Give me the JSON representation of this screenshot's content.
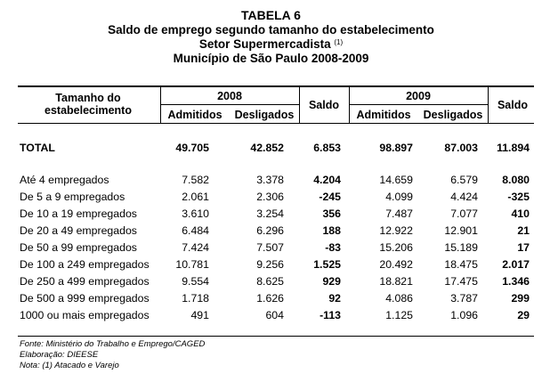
{
  "title": {
    "line1": "TABELA 6",
    "line2": "Saldo de emprego segundo tamanho do estabelecimento",
    "line3": "Setor Supermercadista",
    "line3_sup": "(1)",
    "line4": "Município de São Paulo 2008-2009"
  },
  "header": {
    "col_label_line1": "Tamanho do",
    "col_label_line2": "estabelecimento",
    "year1": "2008",
    "year2": "2009",
    "admitidos": "Admitidos",
    "desligados": "Desligados",
    "saldo": "Saldo"
  },
  "total": {
    "label": "TOTAL",
    "a2008": "49.705",
    "d2008": "42.852",
    "s2008": "6.853",
    "a2009": "98.897",
    "d2009": "87.003",
    "s2009": "11.894"
  },
  "rows": [
    {
      "label": "Até 4 empregados",
      "a2008": "7.582",
      "d2008": "3.378",
      "s2008": "4.204",
      "a2009": "14.659",
      "d2009": "6.579",
      "s2009": "8.080"
    },
    {
      "label": "De 5 a 9 empregados",
      "a2008": "2.061",
      "d2008": "2.306",
      "s2008": "-245",
      "a2009": "4.099",
      "d2009": "4.424",
      "s2009": "-325"
    },
    {
      "label": "De 10 a 19 empregados",
      "a2008": "3.610",
      "d2008": "3.254",
      "s2008": "356",
      "a2009": "7.487",
      "d2009": "7.077",
      "s2009": "410"
    },
    {
      "label": "De 20 a 49 empregados",
      "a2008": "6.484",
      "d2008": "6.296",
      "s2008": "188",
      "a2009": "12.922",
      "d2009": "12.901",
      "s2009": "21"
    },
    {
      "label": "De 50 a 99 empregados",
      "a2008": "7.424",
      "d2008": "7.507",
      "s2008": "-83",
      "a2009": "15.206",
      "d2009": "15.189",
      "s2009": "17"
    },
    {
      "label": "De 100 a 249 empregados",
      "a2008": "10.781",
      "d2008": "9.256",
      "s2008": "1.525",
      "a2009": "20.492",
      "d2009": "18.475",
      "s2009": "2.017"
    },
    {
      "label": "De 250 a 499 empregados",
      "a2008": "9.554",
      "d2008": "8.625",
      "s2008": "929",
      "a2009": "18.821",
      "d2009": "17.475",
      "s2009": "1.346"
    },
    {
      "label": "De 500 a 999 empregados",
      "a2008": "1.718",
      "d2008": "1.626",
      "s2008": "92",
      "a2009": "4.086",
      "d2009": "3.787",
      "s2009": "299"
    },
    {
      "label": "1000 ou mais empregados",
      "a2008": "491",
      "d2008": "604",
      "s2008": "-113",
      "a2009": "1.125",
      "d2009": "1.096",
      "s2009": "29"
    }
  ],
  "footer": {
    "source": "Fonte: Ministério do Trabalho e Emprego/CAGED",
    "elab": "Elaboração: DIEESE",
    "note": "Nota: (1) Atacado e Varejo"
  }
}
